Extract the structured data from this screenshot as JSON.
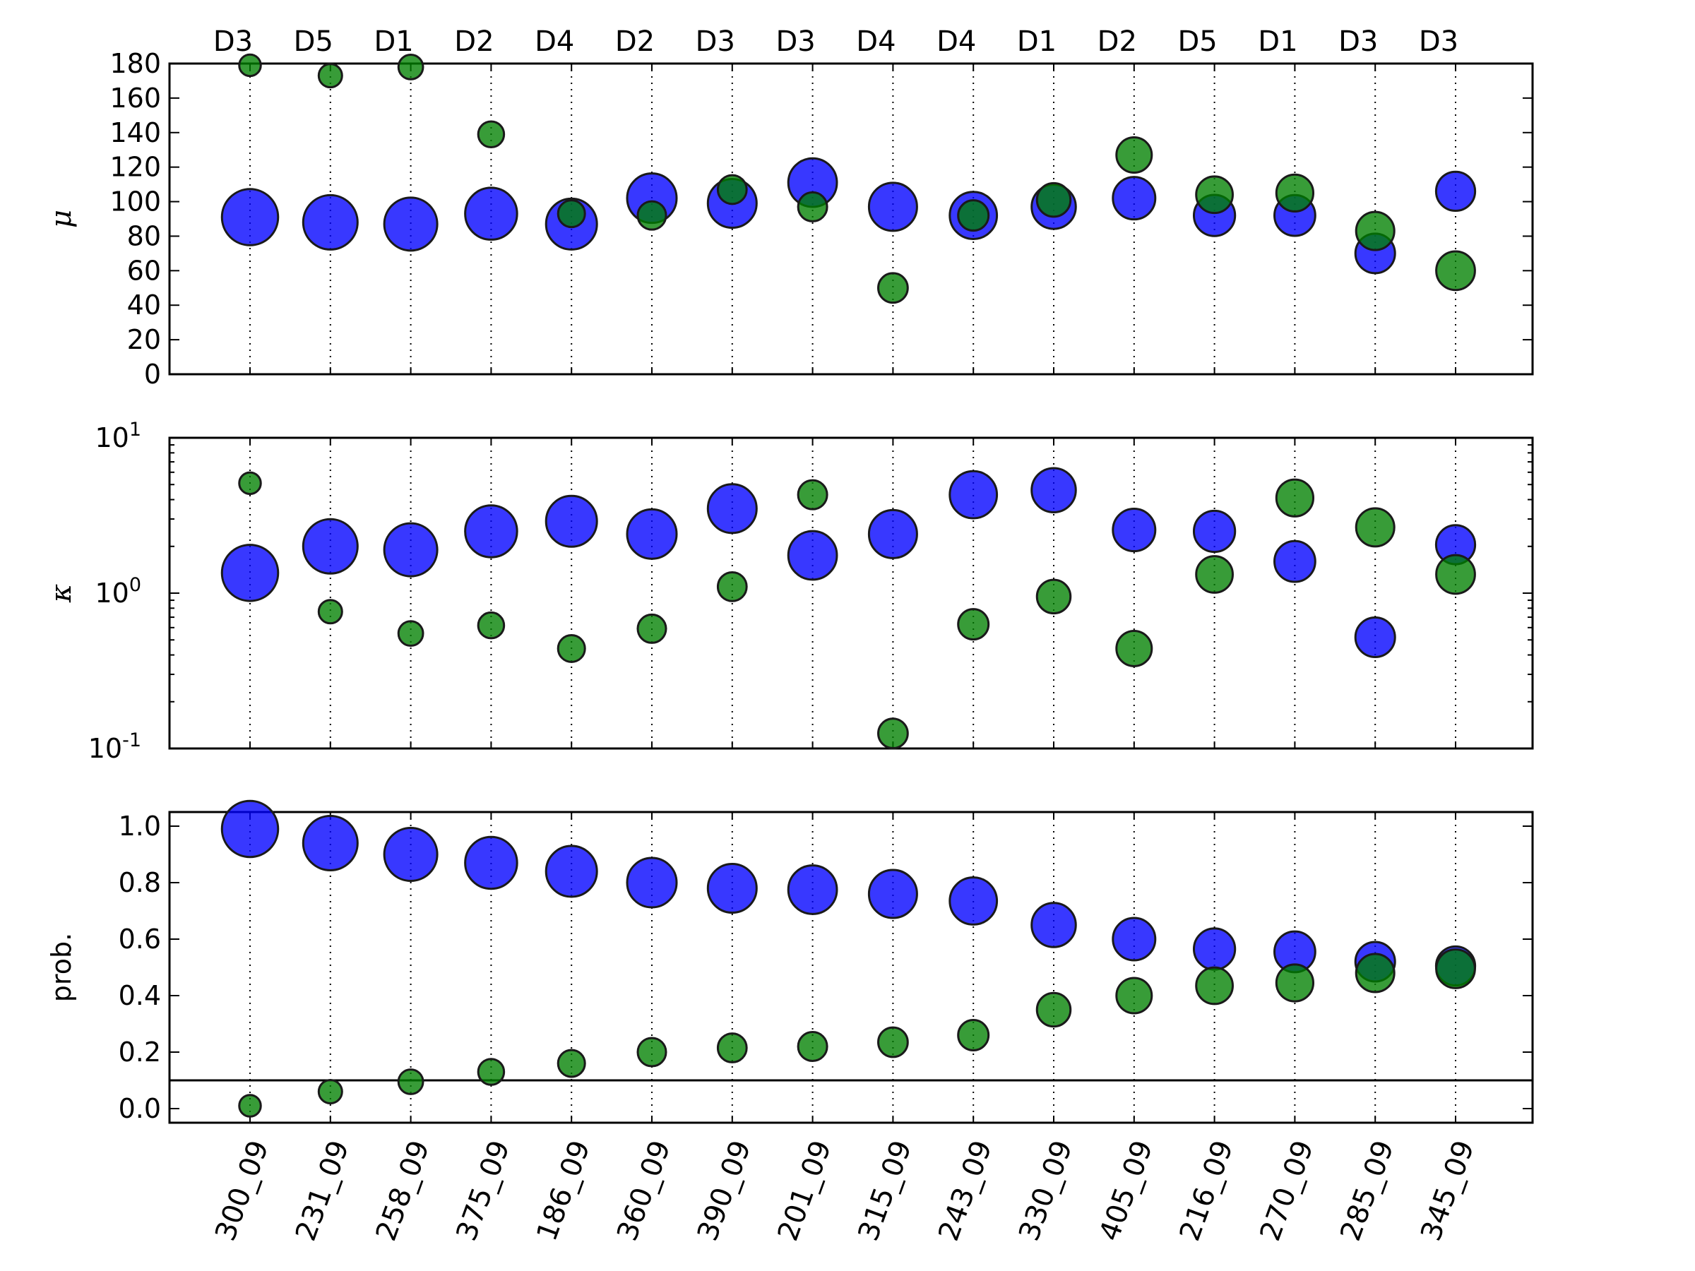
{
  "chart_data": {
    "type": "scatter",
    "categories": [
      "300_09",
      "231_09",
      "258_09",
      "375_09",
      "186_09",
      "360_09",
      "390_09",
      "201_09",
      "315_09",
      "243_09",
      "330_09",
      "405_09",
      "216_09",
      "270_09",
      "285_09",
      "345_09"
    ],
    "top_labels": [
      "D3",
      "D5",
      "D1",
      "D2",
      "D4",
      "D2",
      "D3",
      "D3",
      "D4",
      "D4",
      "D1",
      "D2",
      "D5",
      "D1",
      "D3",
      "D3"
    ],
    "colors": {
      "blue": "#0000ff",
      "green": "#008000"
    },
    "panels": [
      {
        "ylabel": "μ",
        "scale": "linear",
        "ylim": [
          0,
          180
        ],
        "ticks": [
          {
            "v": 0,
            "label": "0"
          },
          {
            "v": 20,
            "label": "20"
          },
          {
            "v": 40,
            "label": "40"
          },
          {
            "v": 60,
            "label": "60"
          },
          {
            "v": 80,
            "label": "80"
          },
          {
            "v": 100,
            "label": "100"
          },
          {
            "v": 120,
            "label": "120"
          },
          {
            "v": 140,
            "label": "140"
          },
          {
            "v": 160,
            "label": "160"
          },
          {
            "v": 180,
            "label": "180"
          }
        ],
        "series": [
          {
            "color": "blue",
            "values": [
              91,
              88,
              87,
              93,
              87,
              102,
              99,
              111,
              97,
              92,
              97,
              102,
              92,
              92,
              70,
              106
            ]
          },
          {
            "color": "green",
            "values": [
              179,
              173,
              178,
              139,
              93,
              92,
              107,
              97,
              50,
              92,
              101,
              127,
              104,
              105,
              83,
              60
            ]
          }
        ]
      },
      {
        "ylabel": "κ",
        "scale": "log",
        "ylim": [
          0.1,
          10
        ],
        "ticks": [
          {
            "v": 0.1,
            "base": "10",
            "exp": "-1"
          },
          {
            "v": 1,
            "base": "10",
            "exp": "0"
          },
          {
            "v": 10,
            "base": "10",
            "exp": "1"
          }
        ],
        "series": [
          {
            "color": "blue",
            "values": [
              1.35,
              2.0,
              1.9,
              2.5,
              2.9,
              2.4,
              3.5,
              1.75,
              2.4,
              4.3,
              4.6,
              2.55,
              2.5,
              1.6,
              0.52,
              2.05
            ]
          },
          {
            "color": "green",
            "values": [
              5.1,
              0.76,
              0.55,
              0.62,
              0.44,
              0.59,
              1.1,
              4.3,
              0.125,
              0.63,
              0.95,
              0.44,
              1.32,
              4.1,
              2.65,
              1.32
            ]
          }
        ]
      },
      {
        "ylabel": "prob.",
        "scale": "linear",
        "ylim": [
          -0.05,
          1.05
        ],
        "hline": 0.1,
        "ticks": [
          {
            "v": 0,
            "label": "0.0"
          },
          {
            "v": 0.2,
            "label": "0.2"
          },
          {
            "v": 0.4,
            "label": "0.4"
          },
          {
            "v": 0.6,
            "label": "0.6"
          },
          {
            "v": 0.8,
            "label": "0.8"
          },
          {
            "v": 1.0,
            "label": "1.0"
          }
        ],
        "series": [
          {
            "color": "blue",
            "values": [
              0.99,
              0.94,
              0.9,
              0.87,
              0.84,
              0.8,
              0.78,
              0.775,
              0.76,
              0.735,
              0.65,
              0.6,
              0.565,
              0.555,
              0.52,
              0.505
            ]
          },
          {
            "color": "green",
            "values": [
              0.01,
              0.06,
              0.095,
              0.13,
              0.16,
              0.2,
              0.215,
              0.22,
              0.235,
              0.26,
              0.35,
              0.4,
              0.435,
              0.445,
              0.48,
              0.495
            ]
          }
        ]
      }
    ]
  }
}
